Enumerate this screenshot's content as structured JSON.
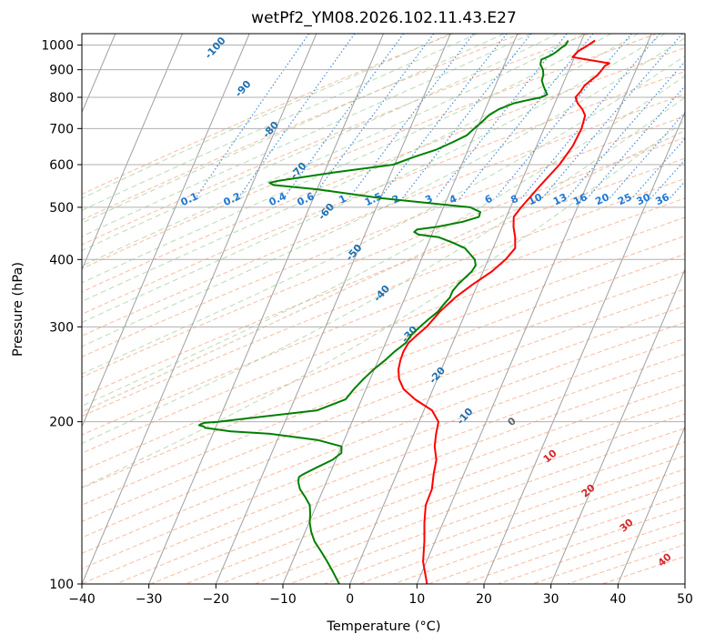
{
  "chart_data": {
    "type": "line",
    "title": "wetPf2_YM08.2026.102.11.43.E27",
    "xlabel": "Temperature (°C)",
    "ylabel": "Pressure (hPa)",
    "xlim": [
      -40,
      50
    ],
    "ylim": [
      1050,
      100
    ],
    "y_scale": "log",
    "x_ticks": [
      -40,
      -30,
      -20,
      -10,
      0,
      10,
      20,
      30,
      40,
      50
    ],
    "y_ticks": [
      1000,
      900,
      800,
      700,
      600,
      500,
      400,
      300,
      200,
      100
    ],
    "grid": true,
    "colors": {
      "temperature": "#ff0000",
      "dewpoint": "#008000",
      "dry_adiabat": "#f4a582",
      "moist_adiabat": "#9ccb95",
      "mixing_ratio": "#1f78d4",
      "isotherm_label": "#d62728",
      "moist_label": "#1f6faf"
    },
    "series": [
      {
        "key": "temperature",
        "pressure": [
          1020,
          1000,
          975,
          950,
          925,
          920,
          915,
          900,
          880,
          860,
          840,
          820,
          800,
          780,
          760,
          740,
          700,
          650,
          600,
          550,
          500,
          480,
          460,
          440,
          420,
          400,
          380,
          360,
          340,
          320,
          300,
          290,
          280,
          270,
          260,
          250,
          240,
          230,
          220,
          210,
          200,
          190,
          180,
          170,
          160,
          150,
          140,
          130,
          120,
          110,
          100
        ],
        "values": [
          2.0,
          1.3,
          0.2,
          -0.3,
          5.6,
          5.4,
          5.1,
          4.9,
          4.6,
          3.9,
          3.3,
          3.1,
          2.7,
          3.4,
          4.5,
          5.3,
          5.6,
          5.4,
          4.6,
          3.1,
          1.6,
          1.1,
          1.7,
          2.6,
          3.3,
          2.6,
          1.3,
          -0.7,
          -2.5,
          -3.9,
          -4.9,
          -5.8,
          -6.6,
          -6.8,
          -6.7,
          -6.4,
          -5.7,
          -4.4,
          -2.0,
          1.2,
          2.9,
          3.3,
          3.9,
          5.0,
          5.5,
          6.2,
          6.3,
          7.2,
          8.4,
          9.5,
          11.5
        ]
      },
      {
        "key": "dewpoint",
        "pressure": [
          1020,
          1000,
          990,
          980,
          970,
          960,
          950,
          940,
          920,
          900,
          880,
          860,
          840,
          820,
          810,
          800,
          790,
          780,
          760,
          740,
          720,
          700,
          680,
          660,
          640,
          620,
          600,
          580,
          560,
          555,
          550,
          540,
          520,
          500,
          490,
          480,
          470,
          460,
          455,
          450,
          445,
          440,
          430,
          420,
          410,
          400,
          390,
          380,
          370,
          360,
          350,
          340,
          330,
          320,
          310,
          300,
          290,
          280,
          270,
          260,
          250,
          240,
          230,
          220,
          210,
          200,
          199,
          198,
          197,
          196,
          195,
          192,
          190,
          185,
          180,
          175,
          170,
          165,
          160,
          158,
          156,
          154,
          150,
          145,
          140,
          135,
          130,
          125,
          120,
          115,
          110,
          105,
          100
        ],
        "values": [
          -2.0,
          -2.1,
          -2.5,
          -2.8,
          -3.1,
          -3.5,
          -4.1,
          -4.8,
          -4.6,
          -3.9,
          -3.5,
          -3.4,
          -2.8,
          -2.1,
          -1.7,
          -2.4,
          -4.3,
          -6.1,
          -8.0,
          -9.1,
          -9.7,
          -10.4,
          -11.1,
          -12.8,
          -14.7,
          -17.6,
          -20.2,
          -28.7,
          -36.3,
          -37.5,
          -36.8,
          -30.0,
          -20.0,
          -6.0,
          -4.2,
          -4.1,
          -6.2,
          -9.7,
          -12.5,
          -12.8,
          -12.0,
          -8.8,
          -6.4,
          -4.2,
          -3.1,
          -2.0,
          -1.5,
          -1.7,
          -2.3,
          -2.9,
          -3.3,
          -3.3,
          -3.8,
          -4.2,
          -5.1,
          -5.9,
          -6.7,
          -7.0,
          -8.1,
          -9.0,
          -10.1,
          -11.0,
          -11.8,
          -12.4,
          -15.9,
          -30.0,
          -32.0,
          -32.4,
          -32.6,
          -31.8,
          -31.6,
          -27.5,
          -21.5,
          -14.0,
          -10.0,
          -9.6,
          -10.5,
          -12.2,
          -13.9,
          -14.4,
          -14.3,
          -14.1,
          -13.5,
          -12.2,
          -11.0,
          -10.4,
          -9.9,
          -9.1,
          -8.0,
          -6.4,
          -4.8,
          -3.2,
          -1.6
        ]
      }
    ],
    "annotations": {
      "dry_adiabats_labels": [
        "-100",
        "-90",
        "-80",
        "-70",
        "-60",
        "-50",
        "-40",
        "-30",
        "-20",
        "-10"
      ],
      "mixing_ratio_labels": [
        "0.1",
        "0.2",
        "0.4",
        "0.6",
        "1",
        "1.5",
        "2",
        "3",
        "4",
        "6",
        "8",
        "10",
        "13",
        "16",
        "20",
        "25",
        "30",
        "36"
      ],
      "isotherm_labels": [
        "0",
        "10",
        "20",
        "30",
        "40"
      ]
    }
  }
}
